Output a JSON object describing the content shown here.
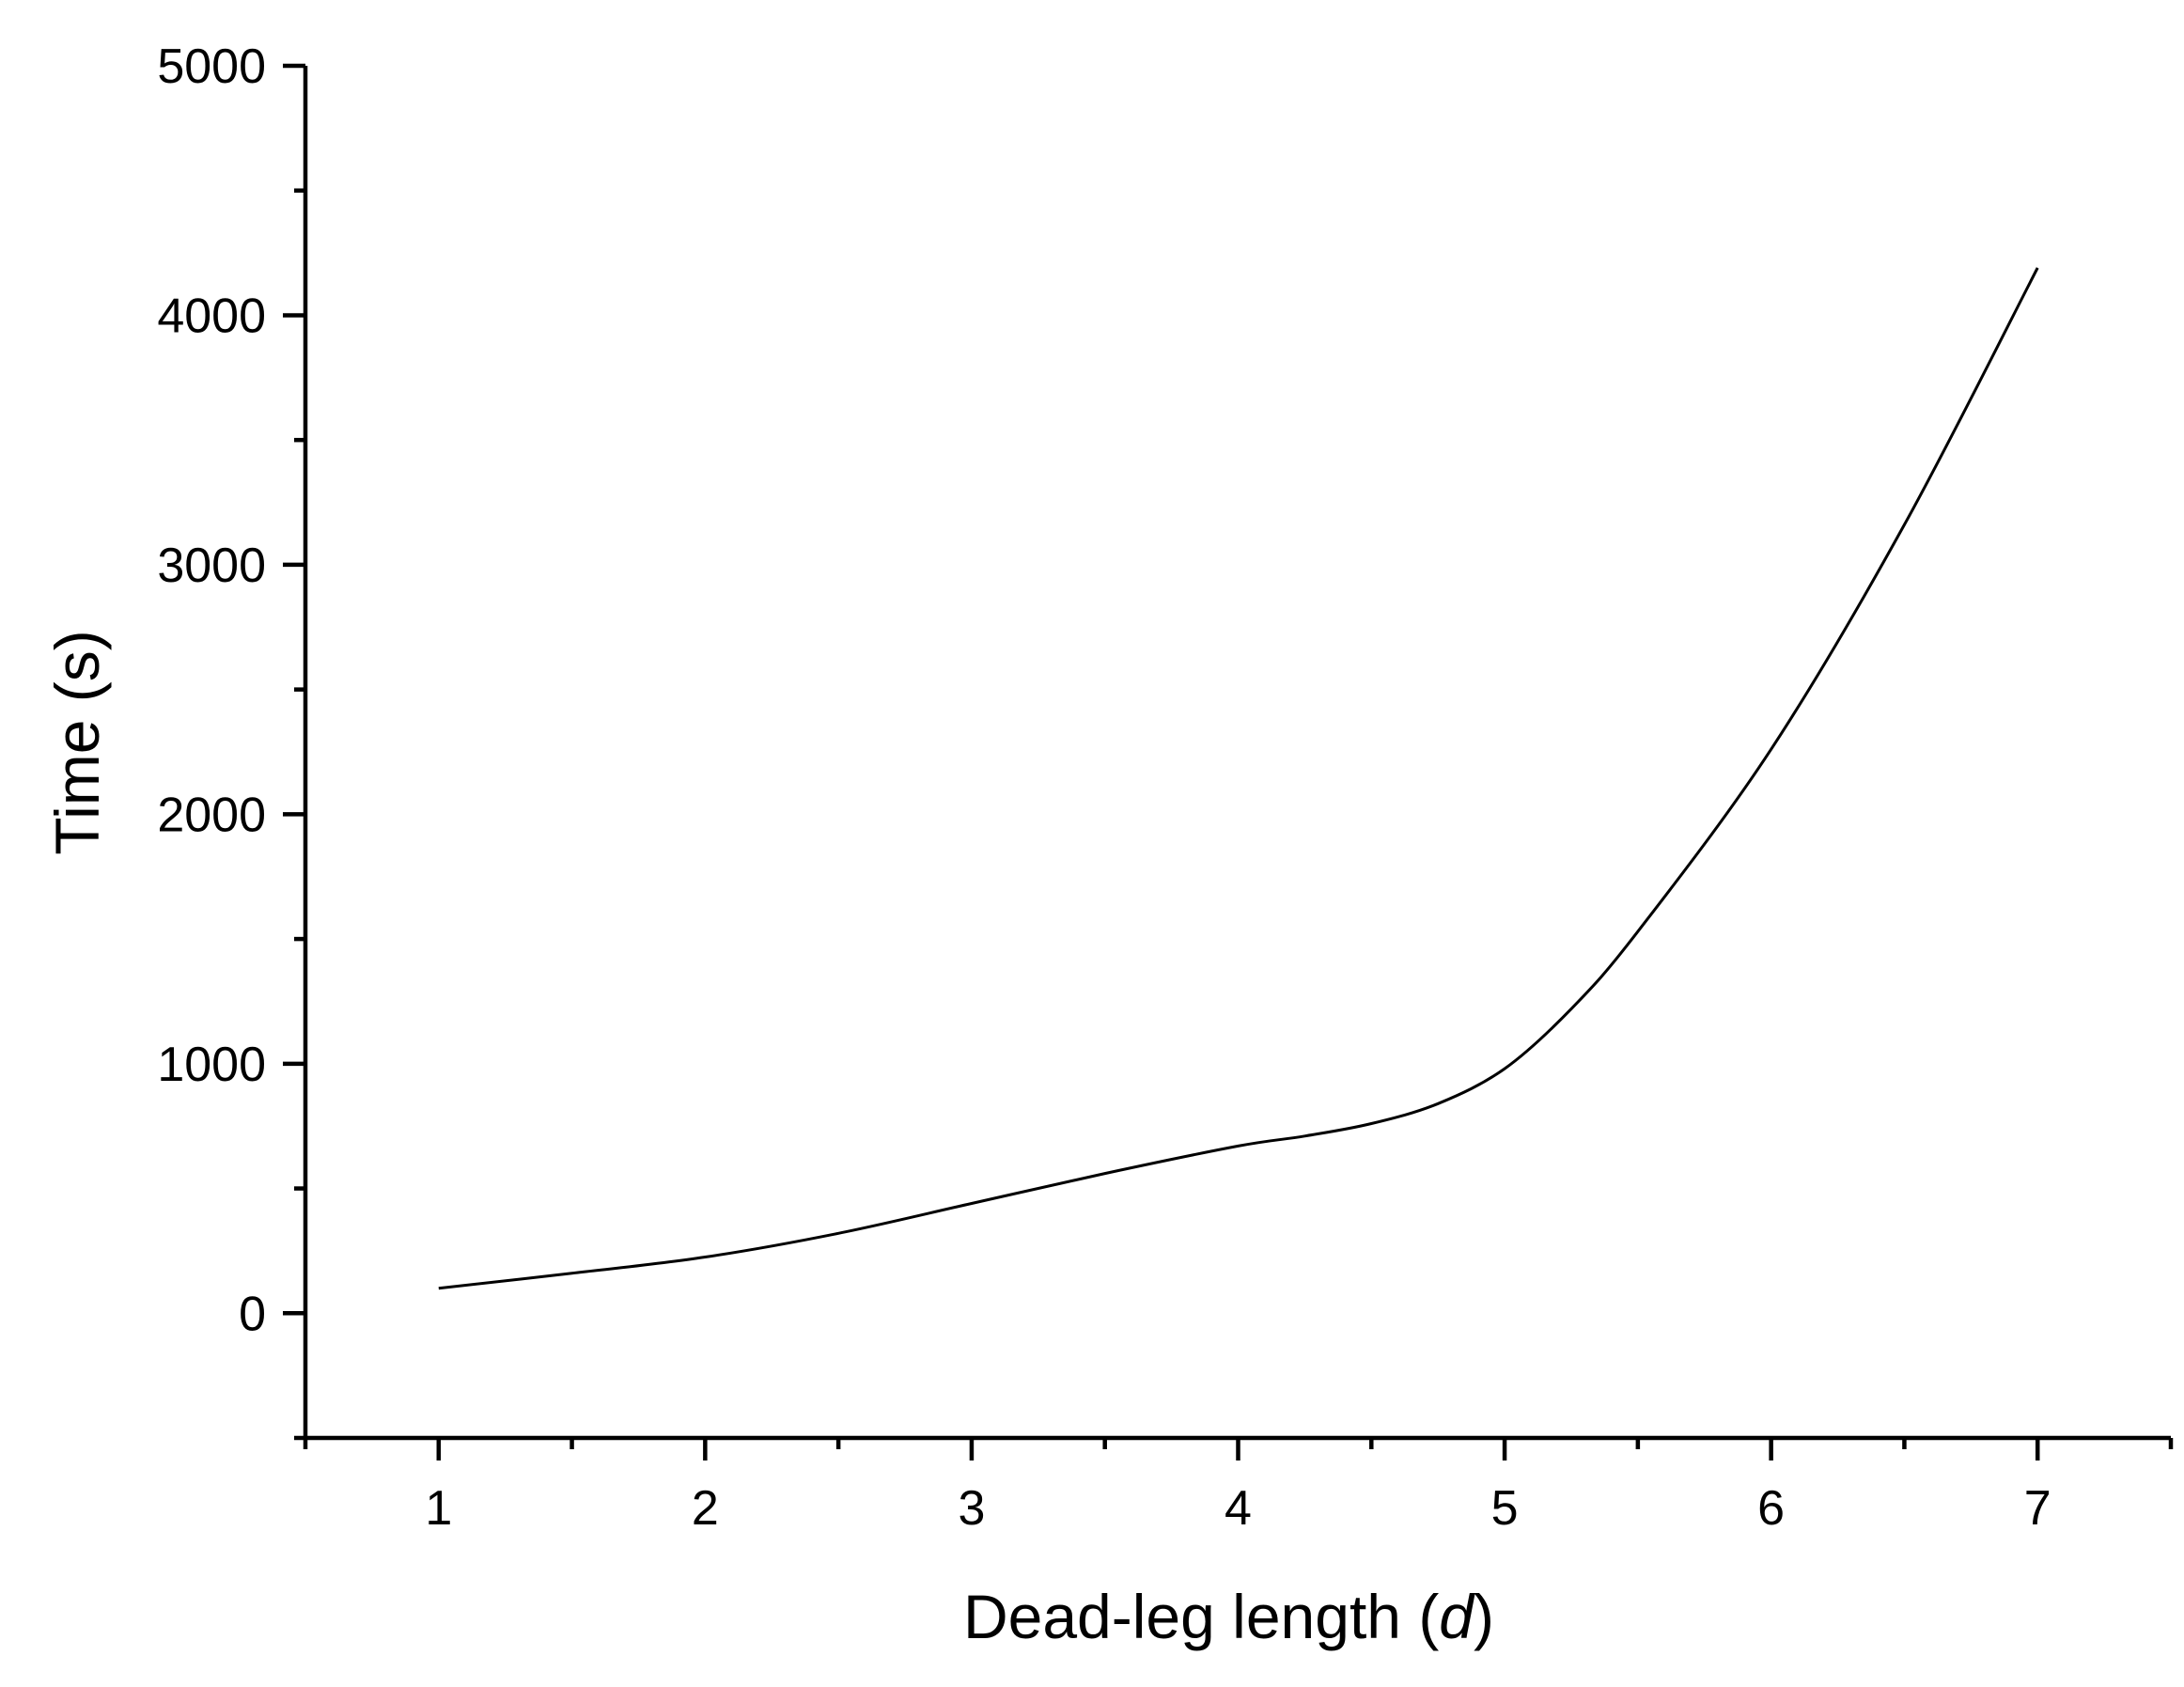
{
  "chart_data": {
    "type": "line",
    "title": "",
    "xlabel": "Dead-leg length (",
    "xlabel_var": "d",
    "xlabel_end": ")",
    "ylabel": "Time (s)",
    "xlim": [
      0.5,
      7.5
    ],
    "ylim": [
      -500,
      5000
    ],
    "x_ticks": [
      1,
      2,
      3,
      4,
      5,
      6,
      7
    ],
    "x_minor_ticks": [
      0.5,
      1.5,
      2.5,
      3.5,
      4.5,
      5.5,
      6.5,
      7.5
    ],
    "y_ticks": [
      0,
      1000,
      2000,
      3000,
      4000,
      5000
    ],
    "y_minor_ticks": [
      -500,
      500,
      1500,
      2500,
      3500,
      4500
    ],
    "x_tick_labels": [
      "1",
      "2",
      "3",
      "4",
      "5",
      "6",
      "7"
    ],
    "y_tick_labels": [
      "0",
      "1000",
      "2000",
      "3000",
      "4000",
      "5000"
    ],
    "grid": false,
    "series": [
      {
        "x": [
          1,
          1.5,
          2,
          2.5,
          3,
          3.5,
          4,
          4.25,
          4.5,
          4.75,
          5,
          5.25,
          5.5,
          6,
          6.5,
          7
        ],
        "y": [
          100,
          160,
          225,
          320,
          440,
          560,
          670,
          710,
          760,
          840,
          980,
          1220,
          1530,
          2260,
          3160,
          4190
        ],
        "color": "#000000"
      }
    ]
  }
}
